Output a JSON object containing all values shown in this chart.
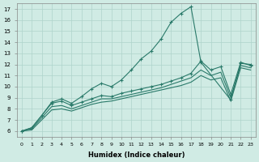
{
  "xlabel": "Humidex (Indice chaleur)",
  "ylabel": "",
  "xlim": [
    -0.5,
    23.5
  ],
  "ylim": [
    5.5,
    17.5
  ],
  "xticks": [
    0,
    1,
    2,
    3,
    4,
    5,
    6,
    7,
    8,
    9,
    10,
    11,
    12,
    13,
    14,
    15,
    16,
    17,
    18,
    19,
    20,
    21,
    22,
    23
  ],
  "yticks": [
    6,
    7,
    8,
    9,
    10,
    11,
    12,
    13,
    14,
    15,
    16,
    17
  ],
  "bg_color": "#d0ebe4",
  "line_color": "#2a7a6a",
  "grid_color": "#aed4cb",
  "line_hump": {
    "x": [
      0,
      1,
      2,
      3,
      4,
      5,
      6,
      7,
      8,
      9,
      10,
      11,
      12,
      13,
      14,
      15,
      16,
      17,
      18,
      21,
      22,
      23
    ],
    "y": [
      6.0,
      6.3,
      7.4,
      8.6,
      8.9,
      8.5,
      9.1,
      9.8,
      10.3,
      10.0,
      10.6,
      11.5,
      12.5,
      13.2,
      14.3,
      15.8,
      16.6,
      17.2,
      12.2,
      8.8,
      12.1,
      12.0
    ],
    "has_marker": true
  },
  "line_mid1": {
    "x": [
      0,
      1,
      2,
      3,
      4,
      5,
      6,
      7,
      8,
      9,
      10,
      11,
      12,
      13,
      14,
      15,
      16,
      17,
      18,
      19,
      20,
      21,
      22,
      23
    ],
    "y": [
      6.0,
      6.3,
      7.4,
      8.5,
      8.7,
      8.3,
      8.6,
      8.9,
      9.2,
      9.1,
      9.4,
      9.6,
      9.8,
      10.0,
      10.2,
      10.5,
      10.8,
      11.2,
      12.3,
      11.5,
      11.8,
      9.3,
      12.2,
      11.9
    ],
    "has_marker": true
  },
  "line_flat1": {
    "x": [
      0,
      1,
      2,
      3,
      4,
      5,
      6,
      7,
      8,
      9,
      10,
      11,
      12,
      13,
      14,
      15,
      16,
      17,
      18,
      19,
      20,
      21,
      22,
      23
    ],
    "y": [
      6.0,
      6.2,
      7.2,
      8.2,
      8.3,
      8.0,
      8.3,
      8.6,
      8.9,
      8.9,
      9.1,
      9.3,
      9.5,
      9.7,
      9.9,
      10.2,
      10.5,
      10.8,
      11.5,
      11.0,
      11.3,
      9.0,
      11.9,
      11.7
    ],
    "has_marker": false
  },
  "line_flat2": {
    "x": [
      0,
      1,
      2,
      3,
      4,
      5,
      6,
      7,
      8,
      9,
      10,
      11,
      12,
      13,
      14,
      15,
      16,
      17,
      18,
      19,
      20,
      21,
      22,
      23
    ],
    "y": [
      6.0,
      6.1,
      7.0,
      7.9,
      8.0,
      7.8,
      8.1,
      8.4,
      8.6,
      8.7,
      8.9,
      9.1,
      9.3,
      9.5,
      9.7,
      9.9,
      10.1,
      10.4,
      11.0,
      10.6,
      10.8,
      8.7,
      11.7,
      11.5
    ],
    "has_marker": false
  }
}
